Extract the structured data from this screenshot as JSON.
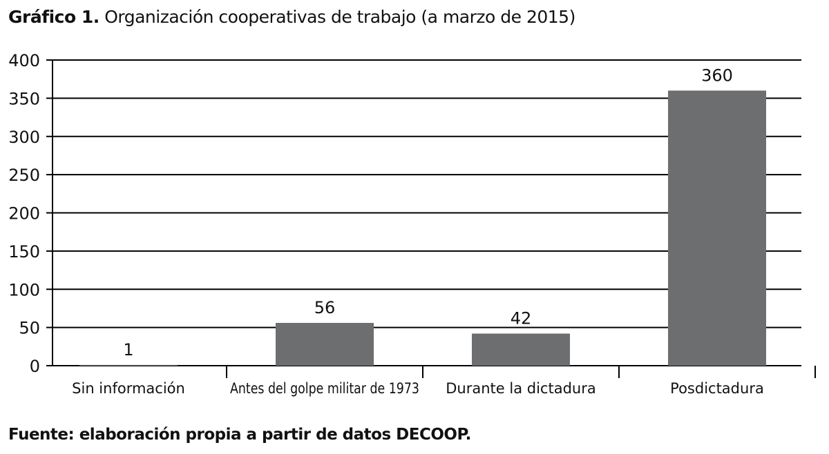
{
  "title": {
    "lead": "Gráfico 1.",
    "rest": "Organización cooperativas de trabajo (a marzo de 2015)"
  },
  "source": "Fuente: elaboración propia a partir de datos DECOOP.",
  "colors": {
    "bar": "#6d6e70",
    "gridline": "#000000",
    "axis": "#000000"
  },
  "chart_data": {
    "type": "bar",
    "categories": [
      "Sin información",
      "Antes del golpe militar de 1973",
      "Durante la dictadura",
      "Posdictadura"
    ],
    "values": [
      1,
      56,
      42,
      360
    ],
    "data_labels": [
      "1",
      "56",
      "42",
      "360"
    ],
    "title": "Organización cooperativas de trabajo (a marzo de 2015)",
    "xlabel": "",
    "ylabel": "",
    "ylim": [
      0,
      400
    ],
    "yticks": [
      0,
      50,
      100,
      150,
      200,
      250,
      300,
      350,
      400
    ],
    "grid": true,
    "legend": "none"
  }
}
